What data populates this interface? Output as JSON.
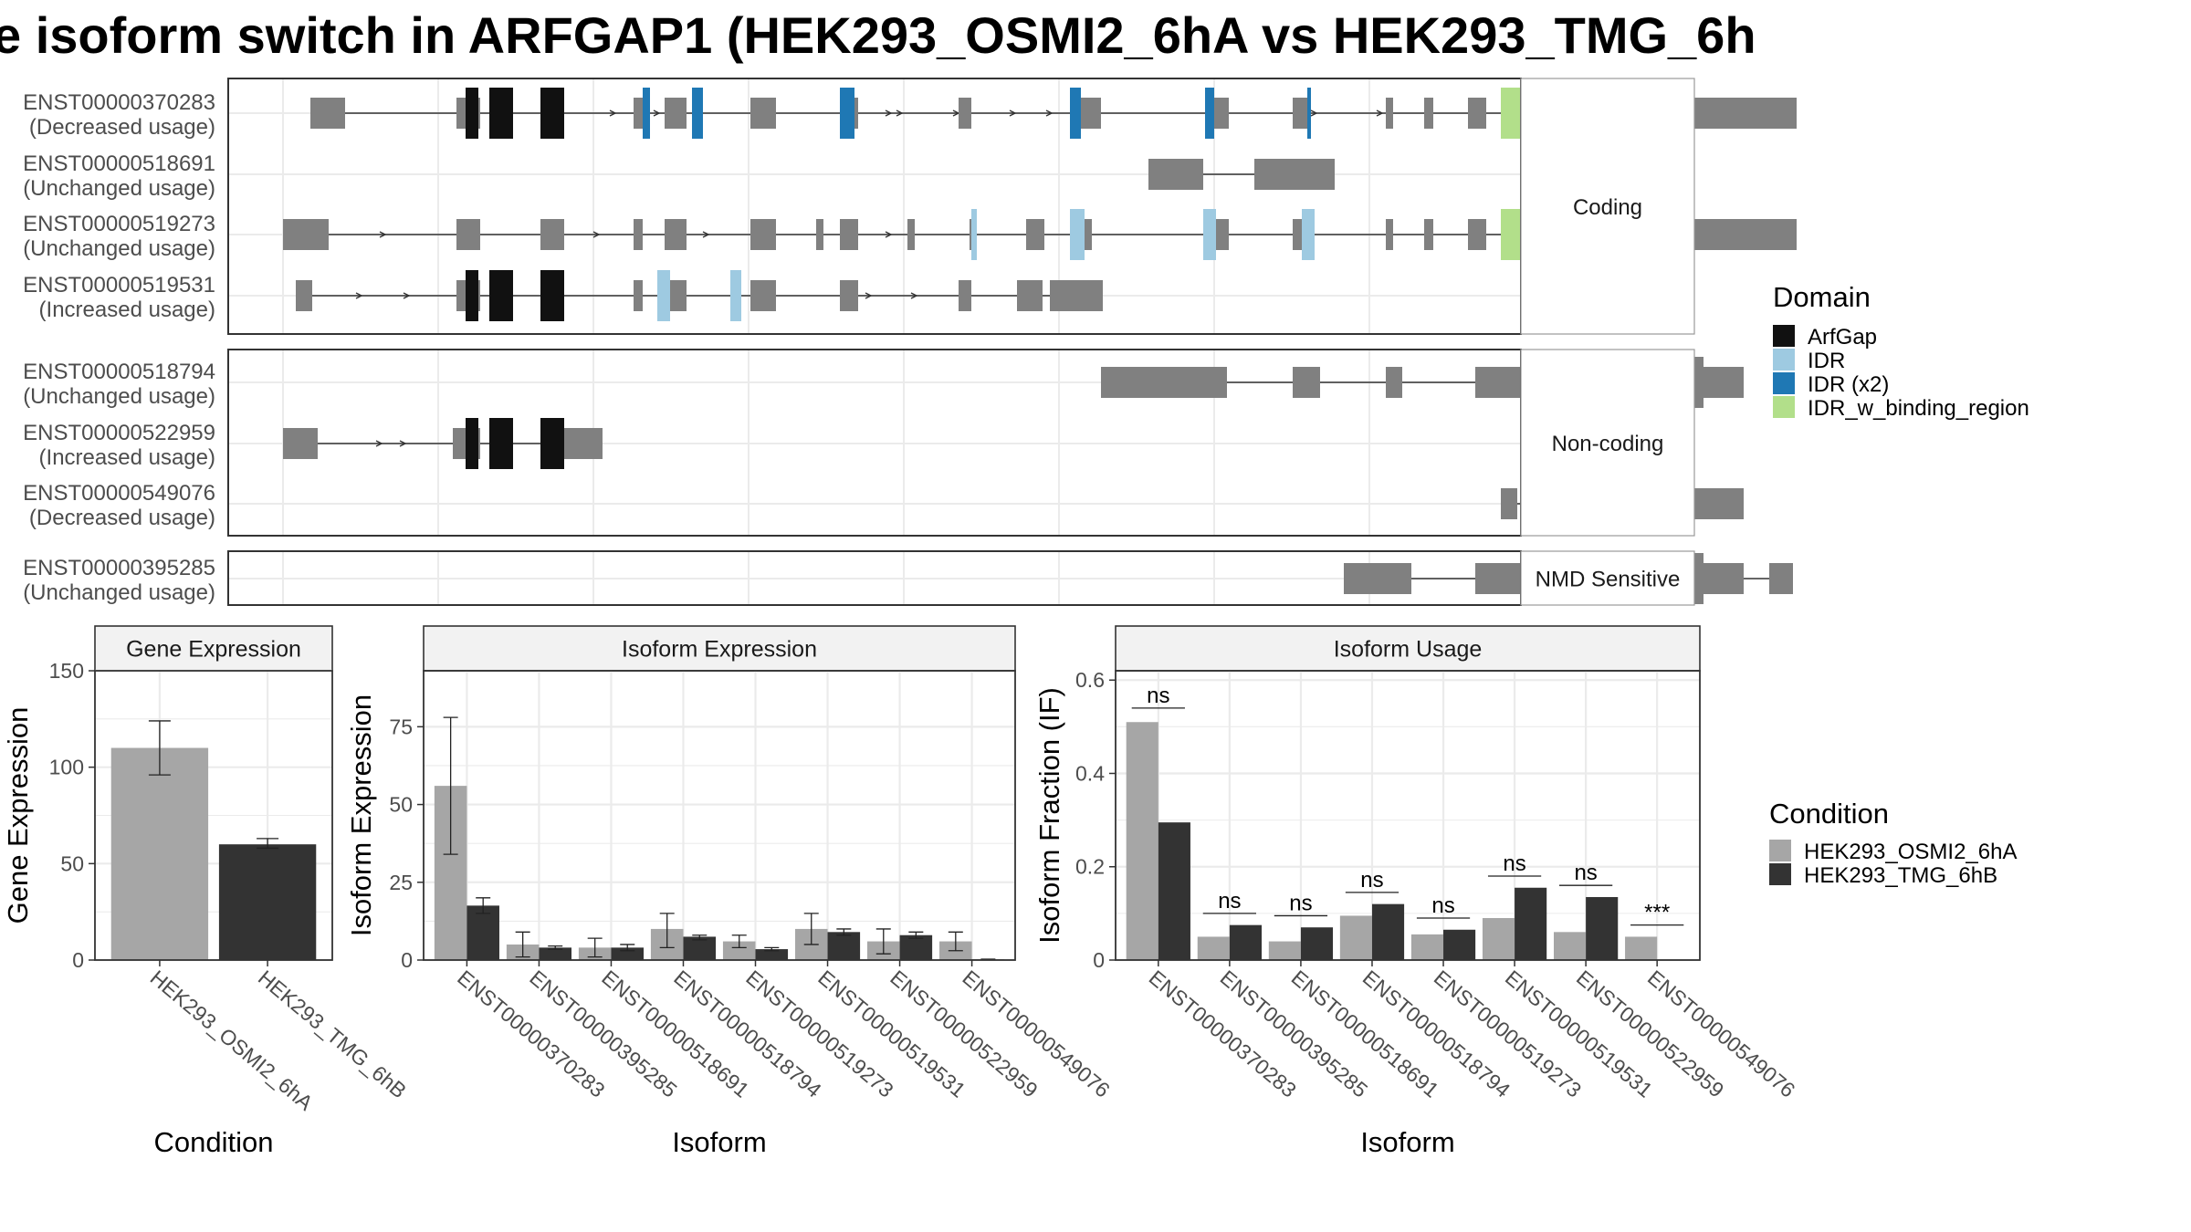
{
  "title": "e isoform switch in ARFGAP1 (HEK293_OSMI2_6hA vs HEK293_TMG_6h",
  "colors": {
    "exon": "#808080",
    "ArfGap": "#111111",
    "IDR": "#9ecae1",
    "IDR_x2": "#1f78b4",
    "IDR_w_binding_region": "#b2df8a",
    "cond_a": "#a6a6a6",
    "cond_b": "#333333",
    "strip": "#f2f2f2",
    "grid": "#ebebeb"
  },
  "structure": {
    "facets": [
      {
        "label": "Coding",
        "transcripts": [
          {
            "id": "ENST00000370283",
            "status": "(Decreased usage)",
            "exons": [
              [
                20,
                39,
                0
              ],
              [
                100,
                113,
                0
              ],
              [
                118,
                131,
                0
              ],
              [
                146,
                159,
                0
              ],
              [
                197,
                202,
                0
              ],
              [
                214,
                226,
                0
              ],
              [
                261,
                275,
                0
              ],
              [
                310,
                320,
                0
              ],
              [
                375,
                382,
                0
              ],
              [
                436,
                453,
                0
              ],
              [
                514,
                523,
                0
              ],
              [
                558,
                567,
                0
              ],
              [
                609,
                613,
                0
              ],
              [
                630,
                635,
                0
              ],
              [
                654,
                664,
                0
              ],
              [
                686,
                706,
                0
              ],
              [
                705,
                708,
                0
              ],
              [
                712,
                834,
                0
              ]
            ],
            "domains": [
              [
                105,
                112,
                "ArfGap"
              ],
              [
                118,
                131,
                "ArfGap"
              ],
              [
                146,
                159,
                "ArfGap"
              ],
              [
                202,
                206,
                "IDR_x2"
              ],
              [
                229,
                235,
                "IDR_x2"
              ],
              [
                310,
                318,
                "IDR_x2"
              ],
              [
                436,
                442,
                "IDR_x2"
              ],
              [
                510,
                515,
                "IDR_x2"
              ],
              [
                566,
                568,
                "IDR_x2"
              ],
              [
                672,
                712,
                "IDR_w_binding_region"
              ]
            ],
            "arrows": [
              36,
              128,
              186,
              210,
              343,
              337,
              374,
              405,
              425,
              570,
              606
            ]
          },
          {
            "id": "ENST00000518691",
            "status": "(Unchanged usage)",
            "exons": [
              [
                479,
                509,
                0
              ],
              [
                537,
                581,
                0
              ]
            ],
            "domains": [],
            "arrows": []
          },
          {
            "id": "ENST00000519273",
            "status": "(Unchanged usage)",
            "exons": [
              [
                5,
                30,
                0
              ],
              [
                100,
                113,
                0
              ],
              [
                146,
                159,
                0
              ],
              [
                197,
                202,
                0
              ],
              [
                214,
                226,
                0
              ],
              [
                261,
                275,
                0
              ],
              [
                297,
                301,
                0
              ],
              [
                310,
                320,
                0
              ],
              [
                347,
                351,
                0
              ],
              [
                381,
                384,
                0
              ],
              [
                412,
                422,
                0
              ],
              [
                436,
                448,
                0
              ],
              [
                514,
                523,
                0
              ],
              [
                558,
                567,
                0
              ],
              [
                609,
                613,
                0
              ],
              [
                630,
                635,
                0
              ],
              [
                654,
                664,
                0
              ],
              [
                686,
                706,
                0
              ],
              [
                712,
                834,
                0
              ]
            ],
            "domains": [
              [
                382,
                385,
                "IDR"
              ],
              [
                436,
                444,
                "IDR"
              ],
              [
                509,
                516,
                "IDR"
              ],
              [
                563,
                570,
                "IDR"
              ],
              [
                672,
                712,
                "IDR_w_binding_region"
              ]
            ],
            "arrows": [
              60,
              177,
              237,
              337,
              446
            ]
          },
          {
            "id": "ENST00000519531",
            "status": "(Increased usage)",
            "exons": [
              [
                12,
                21,
                0
              ],
              [
                100,
                113,
                0
              ],
              [
                118,
                131,
                0
              ],
              [
                146,
                159,
                0
              ],
              [
                197,
                202,
                0
              ],
              [
                214,
                226,
                0
              ],
              [
                261,
                275,
                0
              ],
              [
                310,
                320,
                0
              ],
              [
                375,
                382,
                0
              ],
              [
                407,
                421,
                0
              ],
              [
                425,
                454,
                0
              ]
            ],
            "domains": [
              [
                105,
                112,
                "ArfGap"
              ],
              [
                118,
                131,
                "ArfGap"
              ],
              [
                146,
                159,
                "ArfGap"
              ],
              [
                210,
                217,
                "IDR"
              ],
              [
                250,
                256,
                "IDR"
              ]
            ],
            "arrows": [
              47,
              73,
              326,
              351
            ]
          }
        ]
      },
      {
        "label": "Non-coding",
        "transcripts": [
          {
            "id": "ENST00000518794",
            "status": "(Unchanged usage)",
            "exons": [
              [
                453,
                522,
                0
              ],
              [
                558,
                573,
                0
              ],
              [
                609,
                618,
                0
              ],
              [
                658,
                764,
                0
              ],
              [
                764,
                783,
                1
              ],
              [
                783,
                805,
                0
              ]
            ],
            "domains": [],
            "arrows": []
          },
          {
            "id": "ENST00000522959",
            "status": "(Increased usage)",
            "exons": [
              [
                5,
                24,
                0
              ],
              [
                98,
                113,
                0
              ],
              [
                118,
                131,
                0
              ],
              [
                146,
                180,
                0
              ]
            ],
            "domains": [
              [
                105,
                112,
                "ArfGap"
              ],
              [
                118,
                131,
                "ArfGap"
              ],
              [
                146,
                159,
                "ArfGap"
              ]
            ],
            "arrows": [
              58,
              71
            ]
          },
          {
            "id": "ENST00000549076",
            "status": "(Decreased usage)",
            "exons": [
              [
                672,
                681,
                0
              ],
              [
                718,
                746,
                0
              ],
              [
                749,
                805,
                0
              ]
            ],
            "domains": [
              [
                727,
                737,
                "IDR"
              ]
            ],
            "arrows": []
          }
        ]
      },
      {
        "label": "NMD Sensitive",
        "transcripts": [
          {
            "id": "ENST00000395285",
            "status": "(Unchanged usage)",
            "exons": [
              [
                586,
                623,
                0
              ],
              [
                658,
                764,
                0
              ],
              [
                764,
                783,
                1
              ],
              [
                783,
                805,
                0
              ],
              [
                819,
                832,
                0
              ]
            ],
            "domains": [],
            "arrows": []
          }
        ]
      }
    ]
  },
  "legend_domain": {
    "title": "Domain",
    "items": [
      {
        "label": "ArfGap",
        "color": "#111111"
      },
      {
        "label": "IDR",
        "color": "#9ecae1"
      },
      {
        "label": "IDR (x2)",
        "color": "#1f78b4"
      },
      {
        "label": "IDR_w_binding_region",
        "color": "#b2df8a"
      }
    ]
  },
  "legend_condition": {
    "title": "Condition",
    "items": [
      {
        "label": "HEK293_OSMI2_6hA",
        "color": "#a6a6a6"
      },
      {
        "label": "HEK293_TMG_6hB",
        "color": "#333333"
      }
    ]
  },
  "chart_data": [
    {
      "type": "bar",
      "title": "Gene Expression",
      "xlabel": "Condition",
      "ylabel": "Gene Expression",
      "ylim": [
        0,
        150
      ],
      "yticks": [
        0,
        50,
        100,
        150
      ],
      "categories": [
        "HEK293_OSMI2_6hA",
        "HEK293_TMG_6hB"
      ],
      "values": [
        110,
        60
      ],
      "errors": [
        [
          96,
          124
        ],
        [
          58,
          63
        ]
      ]
    },
    {
      "type": "bar",
      "title": "Isoform Expression",
      "xlabel": "Isoform",
      "ylabel": "Isoform Expression",
      "ylim": [
        0,
        93
      ],
      "yticks": [
        0,
        25,
        50,
        75
      ],
      "categories": [
        "ENST00000370283",
        "ENST00000395285",
        "ENST00000518691",
        "ENST00000518794",
        "ENST00000519273",
        "ENST00000519531",
        "ENST00000522959",
        "ENST00000549076"
      ],
      "series": [
        {
          "name": "HEK293_OSMI2_6hA",
          "values": [
            56,
            5,
            4,
            10,
            6,
            10,
            6,
            6
          ],
          "errors": [
            [
              34,
              78
            ],
            [
              1,
              9
            ],
            [
              1,
              7
            ],
            [
              4,
              15
            ],
            [
              4,
              8
            ],
            [
              5,
              15
            ],
            [
              2,
              10
            ],
            [
              3,
              9
            ]
          ]
        },
        {
          "name": "HEK293_TMG_6hB",
          "values": [
            17.5,
            4,
            4,
            7.5,
            3.5,
            9,
            8,
            0.2
          ],
          "errors": [
            [
              15,
              20
            ],
            [
              3.5,
              4.5
            ],
            [
              3,
              5
            ],
            [
              6.5,
              8
            ],
            [
              3,
              4
            ],
            [
              8,
              10
            ],
            [
              7,
              9
            ],
            [
              0.1,
              0.3
            ]
          ]
        }
      ]
    },
    {
      "type": "bar",
      "title": "Isoform Usage",
      "xlabel": "Isoform",
      "ylabel": "Isoform Fraction (IF)",
      "ylim": [
        0,
        0.62
      ],
      "yticks": [
        0.0,
        0.2,
        0.4,
        0.6
      ],
      "categories": [
        "ENST00000370283",
        "ENST00000395285",
        "ENST00000518691",
        "ENST00000518794",
        "ENST00000519273",
        "ENST00000519531",
        "ENST00000522959",
        "ENST00000549076"
      ],
      "series": [
        {
          "name": "HEK293_OSMI2_6hA",
          "values": [
            0.51,
            0.05,
            0.04,
            0.095,
            0.055,
            0.09,
            0.06,
            0.05
          ]
        },
        {
          "name": "HEK293_TMG_6hB",
          "values": [
            0.295,
            0.075,
            0.07,
            0.12,
            0.065,
            0.155,
            0.135,
            0.0
          ]
        }
      ],
      "significance": [
        "ns",
        "ns",
        "ns",
        "ns",
        "ns",
        "ns",
        "ns",
        "***"
      ],
      "significance_y": [
        0.54,
        0.1,
        0.095,
        0.145,
        0.09,
        0.18,
        0.16,
        0.075
      ]
    }
  ]
}
